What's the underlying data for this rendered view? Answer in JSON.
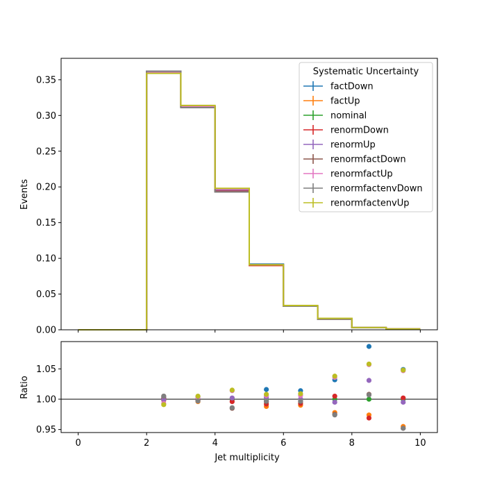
{
  "chart_data": [
    {
      "type": "line",
      "panel": "main",
      "title": "",
      "xlabel": "",
      "ylabel": "Events",
      "xlim": [
        -0.5,
        10.5
      ],
      "ylim": [
        0,
        0.38
      ],
      "xticks": [
        "0",
        "2",
        "4",
        "6",
        "8",
        "10"
      ],
      "yticks": [
        "0.00",
        "0.05",
        "0.10",
        "0.15",
        "0.20",
        "0.25",
        "0.30",
        "0.35"
      ],
      "bin_edges": [
        0,
        1,
        2,
        3,
        4,
        5,
        6,
        7,
        8,
        9,
        10
      ],
      "legend_title": "Systematic Uncertainty",
      "legend_placement": "top-right",
      "series": [
        {
          "name": "factDown",
          "color": "#1f77b4",
          "values": [
            0,
            0,
            0.361,
            0.313,
            0.195,
            0.092,
            0.034,
            0.016,
            0.0033,
            0.0012
          ]
        },
        {
          "name": "factUp",
          "color": "#ff7f0e",
          "values": [
            0,
            0,
            0.36,
            0.312,
            0.196,
            0.09,
            0.033,
            0.015,
            0.0029,
            0.0011
          ]
        },
        {
          "name": "nominal",
          "color": "#2ca02c",
          "values": [
            0,
            0,
            0.36,
            0.312,
            0.195,
            0.091,
            0.033,
            0.015,
            0.003,
            0.0011
          ]
        },
        {
          "name": "renormDown",
          "color": "#d62728",
          "values": [
            0,
            0,
            0.361,
            0.312,
            0.194,
            0.09,
            0.033,
            0.015,
            0.0029,
            0.0011
          ]
        },
        {
          "name": "renormUp",
          "color": "#9467bd",
          "values": [
            0,
            0,
            0.361,
            0.313,
            0.196,
            0.091,
            0.034,
            0.015,
            0.0031,
            0.0011
          ]
        },
        {
          "name": "renormfactDown",
          "color": "#8c564b",
          "values": [
            0,
            0,
            0.362,
            0.311,
            0.193,
            0.091,
            0.033,
            0.015,
            0.003,
            0.0011
          ]
        },
        {
          "name": "renormfactUp",
          "color": "#e377c2",
          "values": [
            0,
            0,
            0.36,
            0.313,
            0.197,
            0.091,
            0.034,
            0.016,
            0.0032,
            0.0012
          ]
        },
        {
          "name": "renormfactenvDown",
          "color": "#7f7f7f",
          "values": [
            0,
            0,
            0.362,
            0.311,
            0.193,
            0.091,
            0.033,
            0.015,
            0.003,
            0.0011
          ]
        },
        {
          "name": "renormfactenvUp",
          "color": "#bcbd22",
          "values": [
            0,
            0,
            0.359,
            0.314,
            0.198,
            0.091,
            0.034,
            0.016,
            0.0032,
            0.0012
          ]
        }
      ]
    },
    {
      "type": "scatter",
      "panel": "ratio",
      "title": "",
      "xlabel": "Jet multiplicity",
      "ylabel": "Ratio",
      "xlim": [
        -0.5,
        10.5
      ],
      "ylim": [
        0.945,
        1.095
      ],
      "xticks": [
        "0",
        "2",
        "4",
        "6",
        "8",
        "10"
      ],
      "yticks": [
        "0.95",
        "1.00",
        "1.05"
      ],
      "reference_line": 1.0,
      "x": [
        2.5,
        3.5,
        4.5,
        5.5,
        6.5,
        7.5,
        8.5,
        9.5
      ],
      "series": [
        {
          "name": "factDown",
          "color": "#1f77b4",
          "values": [
            1.002,
            1.004,
            1.0,
            1.016,
            1.014,
            1.032,
            1.087,
            1.049
          ]
        },
        {
          "name": "factUp",
          "color": "#ff7f0e",
          "values": [
            0.998,
            0.996,
            1.001,
            0.988,
            0.99,
            0.978,
            0.974,
            0.955
          ]
        },
        {
          "name": "nominal",
          "color": "#2ca02c",
          "values": [
            1.0,
            1.0,
            1.0,
            1.0,
            1.0,
            1.0,
            1.0,
            1.0
          ]
        },
        {
          "name": "renormDown",
          "color": "#d62728",
          "values": [
            1.001,
            0.999,
            0.996,
            0.992,
            0.993,
            1.005,
            0.969,
            1.002
          ]
        },
        {
          "name": "renormUp",
          "color": "#9467bd",
          "values": [
            0.999,
            1.001,
            1.002,
            1.003,
            1.0,
            0.995,
            1.031,
            0.995
          ]
        },
        {
          "name": "renormfactDown",
          "color": "#8c564b",
          "values": [
            1.005,
            0.998,
            0.985,
            0.996,
            0.996,
            0.975,
            1.008,
            0.952
          ]
        },
        {
          "name": "renormfactUp",
          "color": "#e377c2",
          "values": [
            0.993,
            1.003,
            1.014,
            1.006,
            1.006,
            1.036,
            1.057,
            1.047
          ]
        },
        {
          "name": "renormfactenvDown",
          "color": "#7f7f7f",
          "values": [
            1.005,
            0.997,
            0.986,
            0.997,
            0.997,
            0.974,
            1.007,
            0.952
          ]
        },
        {
          "name": "renormfactenvUp",
          "color": "#bcbd22",
          "values": [
            0.991,
            1.005,
            1.015,
            1.008,
            1.009,
            1.038,
            1.058,
            1.048
          ]
        }
      ]
    }
  ]
}
